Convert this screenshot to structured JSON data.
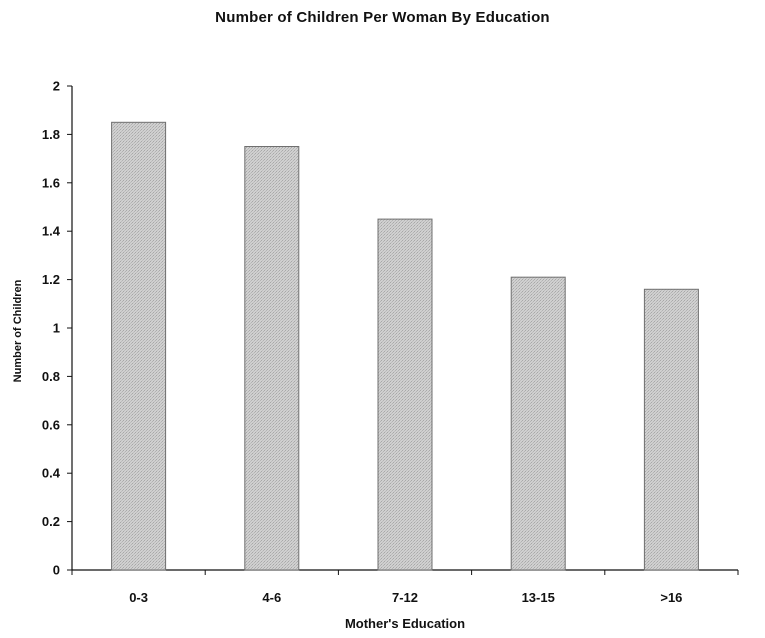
{
  "chart_data": {
    "type": "bar",
    "title": "Number of Children Per Woman By Education",
    "xlabel": "Mother's Education",
    "ylabel": "Number of Children",
    "categories": [
      "0-3",
      "4-6",
      "7-12",
      "13-15",
      ">16"
    ],
    "values": [
      1.85,
      1.75,
      1.45,
      1.21,
      1.16
    ],
    "ylim": [
      0,
      2
    ],
    "yticks": [
      "0",
      "0.2",
      "0.4",
      "0.6",
      "0.8",
      "1",
      "1.2",
      "1.4",
      "1.6",
      "1.8",
      "2"
    ],
    "grid": false,
    "legend": "none",
    "bar_color": "#c9c9c9",
    "bar_edge_color": "#6f6f6f"
  }
}
